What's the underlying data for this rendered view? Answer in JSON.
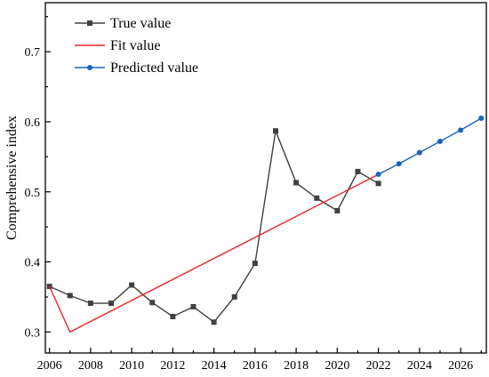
{
  "chart_data": {
    "type": "line",
    "title": "",
    "xlabel": "",
    "ylabel": "Comprehensive index",
    "xlim": [
      2006,
      2027
    ],
    "ylim": [
      0.27,
      0.77
    ],
    "xticks": [
      "2006",
      "2008",
      "2010",
      "2012",
      "2014",
      "2016",
      "2018",
      "2020",
      "2022",
      "2024",
      "2026"
    ],
    "yticks": [
      "0.3",
      "0.4",
      "0.5",
      "0.6",
      "0.7"
    ],
    "grid": false,
    "legend_position": "top-left",
    "series": [
      {
        "name": "True value",
        "color": "#404040",
        "marker": "square",
        "x": [
          2006,
          2007,
          2008,
          2009,
          2010,
          2011,
          2012,
          2013,
          2014,
          2015,
          2016,
          2017,
          2018,
          2019,
          2020,
          2021,
          2022
        ],
        "y": [
          0.365,
          0.352,
          0.341,
          0.341,
          0.367,
          0.342,
          0.322,
          0.336,
          0.314,
          0.35,
          0.398,
          0.587,
          0.513,
          0.491,
          0.473,
          0.529,
          0.512
        ]
      },
      {
        "name": "Fit value",
        "color": "#e8272a",
        "marker": "none",
        "x": [
          2006,
          2007,
          2022
        ],
        "y": [
          0.365,
          0.3,
          0.525
        ]
      },
      {
        "name": "Predicted value",
        "color": "#1565c0",
        "marker": "circle",
        "x": [
          2022,
          2023,
          2024,
          2025,
          2026,
          2027
        ],
        "y": [
          0.525,
          0.54,
          0.556,
          0.572,
          0.588,
          0.605
        ]
      }
    ]
  }
}
